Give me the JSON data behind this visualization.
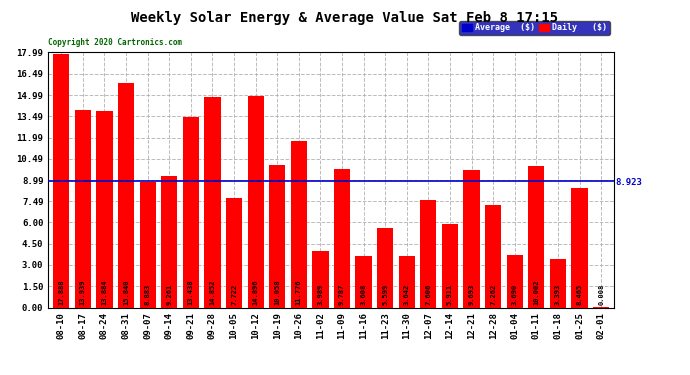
{
  "title": "Weekly Solar Energy & Average Value Sat Feb 8 17:15",
  "copyright": "Copyright 2020 Cartronics.com",
  "categories": [
    "08-10",
    "08-17",
    "08-24",
    "08-31",
    "09-07",
    "09-14",
    "09-21",
    "09-28",
    "10-05",
    "10-12",
    "10-19",
    "10-26",
    "11-02",
    "11-09",
    "11-16",
    "11-23",
    "11-30",
    "12-07",
    "12-14",
    "12-21",
    "12-28",
    "01-04",
    "01-11",
    "01-18",
    "01-25",
    "02-01"
  ],
  "values": [
    17.888,
    13.939,
    13.884,
    15.84,
    8.883,
    9.261,
    13.438,
    14.852,
    7.722,
    14.896,
    10.058,
    11.776,
    3.989,
    9.787,
    3.608,
    5.599,
    3.642,
    7.606,
    5.911,
    9.693,
    7.262,
    3.69,
    10.002,
    3.393,
    8.465,
    0.008
  ],
  "average": 8.923,
  "bar_color": "#ff0000",
  "average_line_color": "#0000cc",
  "background_color": "#ffffff",
  "plot_bg_color": "#ffffff",
  "grid_color": "#aaaaaa",
  "yticks": [
    0.0,
    1.5,
    3.0,
    4.5,
    6.0,
    7.49,
    8.99,
    10.49,
    11.99,
    13.49,
    14.99,
    16.49,
    17.99
  ],
  "ylim": [
    0,
    17.99
  ],
  "legend_avg_color": "#0000cc",
  "legend_daily_color": "#ff0000",
  "legend_bg_color": "#0000aa",
  "font_color": "#000000",
  "title_fontsize": 10,
  "tick_fontsize": 6.5,
  "value_fontsize": 5.0,
  "average_label": "8.923",
  "bar_width": 0.75,
  "copyright_color": "#006600"
}
